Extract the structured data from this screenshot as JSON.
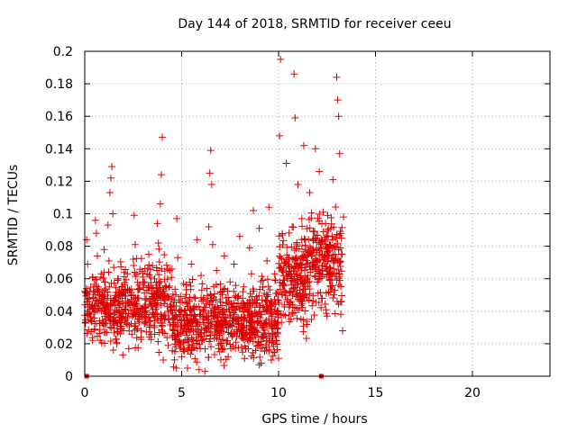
{
  "chart_data": {
    "type": "scatter",
    "title": "Day 144 of 2018, SRMTID for receiver ceeu",
    "xlabel": "GPS time / hours",
    "ylabel": "SRMTID / TECUs",
    "xlim": [
      0,
      24
    ],
    "ylim": [
      0,
      0.2
    ],
    "x_ticks": [
      0,
      5,
      10,
      15,
      20
    ],
    "x_tick_labels": [
      "0",
      "5",
      "10",
      "15",
      "20"
    ],
    "y_ticks": [
      0,
      0.02,
      0.04,
      0.06,
      0.08,
      0.1,
      0.12,
      0.14,
      0.16,
      0.18,
      0.2
    ],
    "y_tick_labels": [
      "0",
      "0.02",
      "0.04",
      "0.06",
      "0.08",
      "0.1",
      "0.12",
      "0.14",
      "0.16",
      "0.18",
      "0.2"
    ],
    "grid": true,
    "marker": "+",
    "color": "#dd0000",
    "series": [
      {
        "name": "SRMTID",
        "points": [
          [
            0.1,
            0.084
          ],
          [
            0.15,
            0.069
          ],
          [
            0.25,
            0.052
          ],
          [
            0.3,
            0.035
          ],
          [
            0.4,
            0.061
          ],
          [
            0.45,
            0.048
          ],
          [
            0.5,
            0.029
          ],
          [
            0.55,
            0.096
          ],
          [
            0.6,
            0.088
          ],
          [
            0.65,
            0.074
          ],
          [
            0.7,
            0.055
          ],
          [
            0.75,
            0.041
          ],
          [
            0.8,
            0.022
          ],
          [
            0.85,
            0.063
          ],
          [
            0.9,
            0.05
          ],
          [
            0.95,
            0.033
          ],
          [
            1.0,
            0.078
          ],
          [
            1.05,
            0.058
          ],
          [
            1.1,
            0.044
          ],
          [
            1.15,
            0.027
          ],
          [
            1.2,
            0.093
          ],
          [
            1.25,
            0.071
          ],
          [
            1.3,
            0.113
          ],
          [
            1.35,
            0.122
          ],
          [
            1.4,
            0.129
          ],
          [
            1.45,
            0.1
          ],
          [
            1.5,
            0.067
          ],
          [
            1.55,
            0.047
          ],
          [
            1.6,
            0.034
          ],
          [
            1.65,
            0.02
          ],
          [
            1.7,
            0.059
          ],
          [
            1.8,
            0.039
          ],
          [
            1.9,
            0.052
          ],
          [
            2.0,
            0.028
          ],
          [
            2.1,
            0.045
          ],
          [
            2.2,
            0.063
          ],
          [
            2.3,
            0.031
          ],
          [
            2.4,
            0.05
          ],
          [
            2.5,
            0.072
          ],
          [
            2.55,
            0.099
          ],
          [
            2.6,
            0.081
          ],
          [
            2.7,
            0.042
          ],
          [
            2.8,
            0.056
          ],
          [
            2.9,
            0.024
          ],
          [
            3.0,
            0.061
          ],
          [
            3.1,
            0.039
          ],
          [
            3.2,
            0.053
          ],
          [
            3.3,
            0.075
          ],
          [
            3.4,
            0.046
          ],
          [
            3.5,
            0.068
          ],
          [
            3.6,
            0.03
          ],
          [
            3.7,
            0.049
          ],
          [
            3.75,
            0.094
          ],
          [
            3.8,
            0.082
          ],
          [
            3.9,
            0.106
          ],
          [
            3.95,
            0.124
          ],
          [
            4.0,
            0.147
          ],
          [
            4.05,
            0.01
          ],
          [
            4.1,
            0.035
          ],
          [
            4.2,
            0.055
          ],
          [
            4.3,
            0.019
          ],
          [
            4.4,
            0.043
          ],
          [
            4.5,
            0.066
          ],
          [
            4.6,
            0.028
          ],
          [
            4.7,
            0.05
          ],
          [
            4.75,
            0.097
          ],
          [
            4.8,
            0.073
          ],
          [
            4.9,
            0.037
          ],
          [
            5.0,
            0.012
          ],
          [
            5.1,
            0.057
          ],
          [
            5.2,
            0.031
          ],
          [
            5.3,
            0.005
          ],
          [
            5.4,
            0.046
          ],
          [
            5.5,
            0.069
          ],
          [
            5.6,
            0.022
          ],
          [
            5.7,
            0.048
          ],
          [
            5.8,
            0.084
          ],
          [
            5.9,
            0.004
          ],
          [
            6.0,
            0.062
          ],
          [
            6.1,
            0.036
          ],
          [
            6.2,
            0.003
          ],
          [
            6.3,
            0.054
          ],
          [
            6.4,
            0.092
          ],
          [
            6.45,
            0.125
          ],
          [
            6.5,
            0.139
          ],
          [
            6.55,
            0.118
          ],
          [
            6.6,
            0.081
          ],
          [
            6.7,
            0.042
          ],
          [
            6.8,
            0.065
          ],
          [
            6.9,
            0.017
          ],
          [
            7.0,
            0.052
          ],
          [
            7.1,
            0.03
          ],
          [
            7.2,
            0.074
          ],
          [
            7.3,
            0.045
          ],
          [
            7.4,
            0.012
          ],
          [
            7.5,
            0.058
          ],
          [
            7.6,
            0.034
          ],
          [
            7.7,
            0.069
          ],
          [
            7.8,
            0.021
          ],
          [
            7.9,
            0.048
          ],
          [
            8.0,
            0.086
          ],
          [
            8.1,
            0.03
          ],
          [
            8.2,
            0.055
          ],
          [
            8.3,
            0.017
          ],
          [
            8.4,
            0.04
          ],
          [
            8.5,
            0.079
          ],
          [
            8.6,
            0.063
          ],
          [
            8.7,
            0.102
          ],
          [
            8.8,
            0.024
          ],
          [
            8.9,
            0.047
          ],
          [
            9.0,
            0.091
          ],
          [
            9.1,
            0.008
          ],
          [
            9.2,
            0.059
          ],
          [
            9.3,
            0.033
          ],
          [
            9.4,
            0.071
          ],
          [
            9.5,
            0.104
          ],
          [
            9.6,
            0.046
          ],
          [
            9.7,
            0.022
          ],
          [
            9.8,
            0.063
          ],
          [
            9.9,
            0.038
          ],
          [
            10.0,
            0.011
          ],
          [
            10.05,
            0.148
          ],
          [
            10.1,
            0.195
          ],
          [
            10.2,
            0.087
          ],
          [
            10.3,
            0.056
          ],
          [
            10.4,
            0.131
          ],
          [
            10.5,
            0.073
          ],
          [
            10.6,
            0.044
          ],
          [
            10.7,
            0.092
          ],
          [
            10.8,
            0.186
          ],
          [
            10.85,
            0.159
          ],
          [
            10.9,
            0.068
          ],
          [
            11.0,
            0.118
          ],
          [
            11.1,
            0.051
          ],
          [
            11.2,
            0.097
          ],
          [
            11.3,
            0.142
          ],
          [
            11.4,
            0.078
          ],
          [
            11.5,
            0.062
          ],
          [
            11.6,
            0.113
          ],
          [
            11.7,
            0.035
          ],
          [
            11.8,
            0.089
          ],
          [
            11.9,
            0.14
          ],
          [
            12.0,
            0.07
          ],
          [
            12.1,
            0.126
          ],
          [
            12.2,
            0.048
          ],
          [
            12.3,
            0.101
          ],
          [
            12.4,
            0.083
          ],
          [
            12.5,
            0.037
          ],
          [
            12.6,
            0.061
          ],
          [
            12.7,
            0.091
          ],
          [
            12.8,
            0.121
          ],
          [
            12.9,
            0.053
          ],
          [
            13.0,
            0.184
          ],
          [
            13.05,
            0.17
          ],
          [
            13.1,
            0.16
          ],
          [
            13.15,
            0.137
          ],
          [
            13.2,
            0.079
          ],
          [
            13.25,
            0.046
          ],
          [
            13.3,
            0.028
          ],
          [
            13.35,
            0.098
          ]
        ]
      }
    ],
    "highlight_points": [
      [
        0.1,
        0
      ],
      [
        12.2,
        0
      ]
    ],
    "point_cloud": {
      "description": "dense scatter of the remaining SRMTID samples",
      "segments": [
        {
          "x_range": [
            0.0,
            2.0
          ],
          "y_range": [
            0.01,
            0.075
          ],
          "count": 220
        },
        {
          "x_range": [
            2.0,
            4.5
          ],
          "y_range": [
            0.01,
            0.08
          ],
          "count": 260
        },
        {
          "x_range": [
            4.5,
            6.5
          ],
          "y_range": [
            0.0,
            0.065
          ],
          "count": 230
        },
        {
          "x_range": [
            6.5,
            8.5
          ],
          "y_range": [
            0.005,
            0.065
          ],
          "count": 230
        },
        {
          "x_range": [
            8.5,
            10.0
          ],
          "y_range": [
            0.0,
            0.07
          ],
          "count": 200
        },
        {
          "x_range": [
            10.0,
            11.5
          ],
          "y_range": [
            0.02,
            0.1
          ],
          "count": 200
        },
        {
          "x_range": [
            11.5,
            13.3
          ],
          "y_range": [
            0.03,
            0.11
          ],
          "count": 220
        }
      ]
    }
  }
}
